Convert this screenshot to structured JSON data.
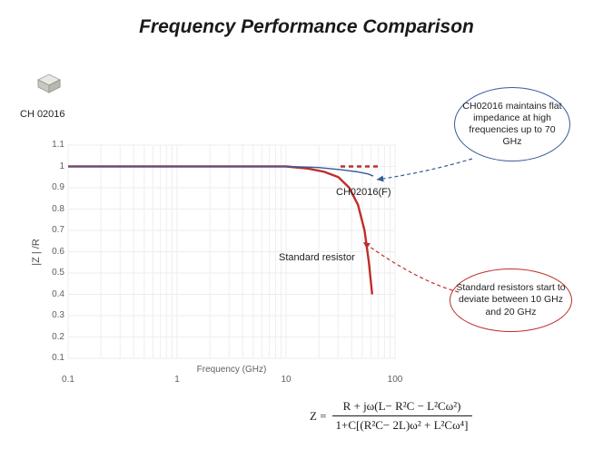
{
  "title": "Frequency Performance Comparison",
  "component": {
    "label": "CH 02016"
  },
  "chart": {
    "type": "line",
    "x_scale": "log",
    "y_scale": "linear",
    "xlim_log10": [
      -1,
      2
    ],
    "ylim": [
      0.1,
      1.1
    ],
    "y_ticks": [
      0.1,
      0.2,
      0.3,
      0.4,
      0.5,
      0.6,
      0.7,
      0.8,
      0.9,
      1,
      1.1
    ],
    "x_ticks": [
      0.1,
      1,
      10,
      100
    ],
    "x_label": "Frequency (GHz)",
    "y_label": "|Z | /R",
    "grid_color": "#eeeeee",
    "axis_color": "#d0d0d0",
    "plot_bg": "#ffffff",
    "series": {
      "ch02016": {
        "label": "CH02016(F)",
        "color": "#385b9a",
        "line_width": 1.4,
        "points_logx_y": [
          [
            -1,
            1.0
          ],
          [
            0,
            1.0
          ],
          [
            0.7,
            1.0
          ],
          [
            1.0,
            1.0
          ],
          [
            1.3,
            0.995
          ],
          [
            1.5,
            0.985
          ],
          [
            1.65,
            0.975
          ],
          [
            1.75,
            0.965
          ],
          [
            1.8,
            0.955
          ]
        ]
      },
      "standard": {
        "label": "Standard resistor",
        "color": "#bd2e2a",
        "line_width": 2.4,
        "points_logx_y": [
          [
            -1,
            1.0
          ],
          [
            0,
            1.0
          ],
          [
            0.7,
            1.0
          ],
          [
            1.0,
            1.0
          ],
          [
            1.2,
            0.99
          ],
          [
            1.35,
            0.975
          ],
          [
            1.48,
            0.95
          ],
          [
            1.58,
            0.9
          ],
          [
            1.66,
            0.82
          ],
          [
            1.72,
            0.7
          ],
          [
            1.76,
            0.55
          ],
          [
            1.78,
            0.45
          ],
          [
            1.79,
            0.4
          ]
        ]
      },
      "dashed": {
        "color": "#bd2e2a",
        "line_width": 2.4,
        "dash": "5,4",
        "points_logx_y": [
          [
            1.5,
            1.0
          ],
          [
            1.85,
            1.0
          ]
        ]
      }
    }
  },
  "callouts": {
    "top": {
      "text": "CH02016 maintains flat impedance at high frequencies up to 70 GHz",
      "border_color": "#385b9a"
    },
    "bottom": {
      "text": "Standard resistors start to deviate between 10 GHz and 20 GHz",
      "border_color": "#bd2e2a"
    }
  },
  "arrows": {
    "top": {
      "color": "#385b9a",
      "dash": "4,3"
    },
    "bottom": {
      "color": "#bd2e2a",
      "dash": "4,3"
    }
  },
  "formula": {
    "lhs": "Z =",
    "num": "R + jω(L− R²C − L²Cω²)",
    "den": "1+C[(R²C− 2L)ω² + L²Cω⁴]"
  }
}
